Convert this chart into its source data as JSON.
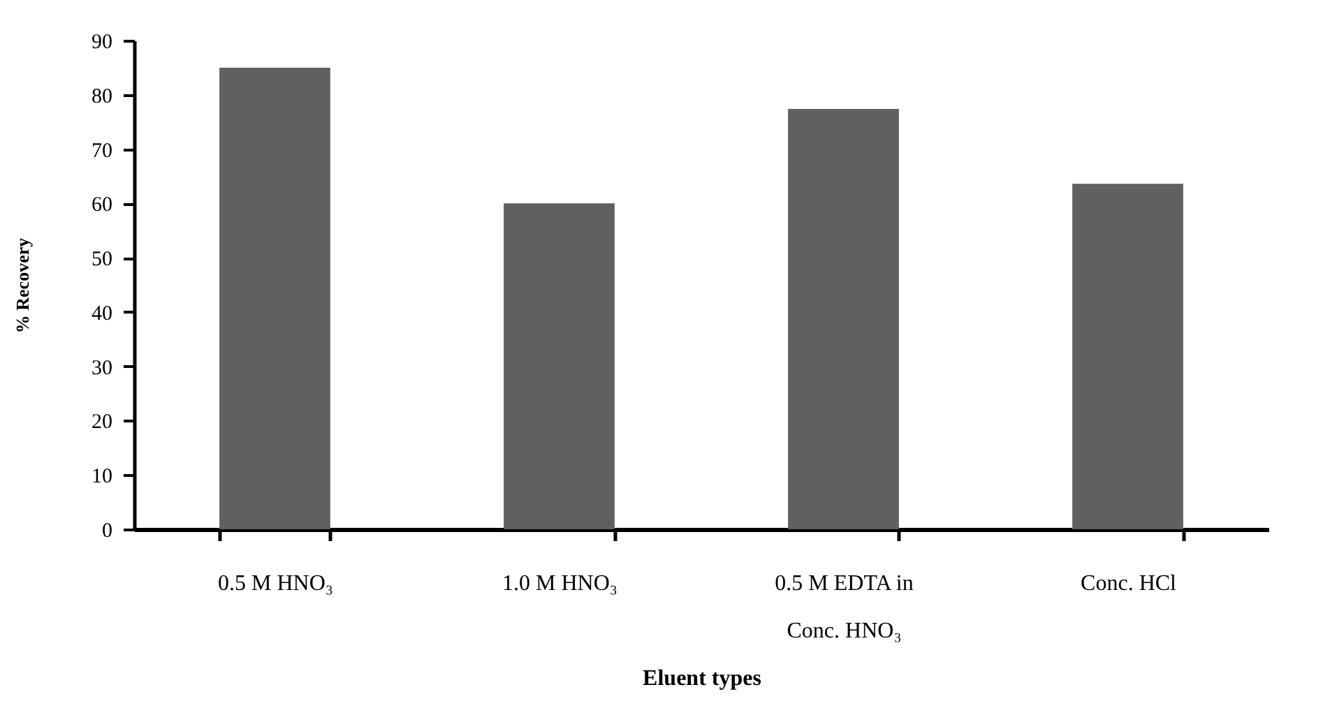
{
  "chart_data": {
    "type": "bar",
    "xlabel": "Eluent types",
    "ylabel": "% Recovery",
    "categories": [
      "0.5 M HNO₃",
      "1.0 M HNO₃",
      "0.5 M EDTA in Conc. HNO₃",
      "Conc. HCl"
    ],
    "values": [
      85,
      60,
      77.4,
      63.6
    ],
    "color": "#606060",
    "ylim": [
      0,
      90
    ],
    "yticks": [
      0,
      10,
      20,
      30,
      40,
      50,
      60,
      70,
      80,
      90
    ],
    "grid": false
  }
}
